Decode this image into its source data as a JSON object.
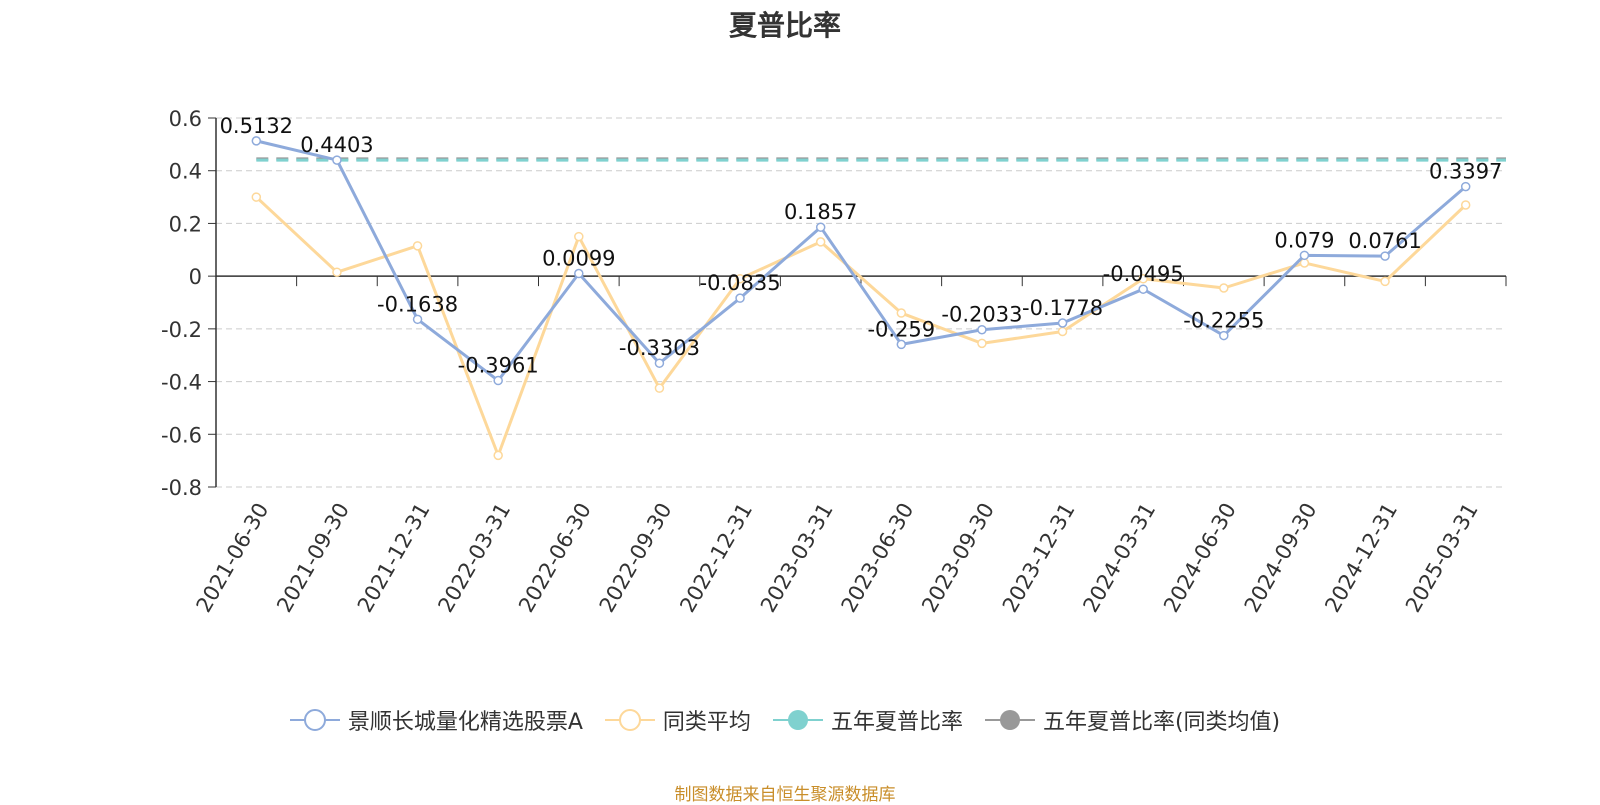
{
  "chart_data": {
    "type": "line",
    "title": "夏普比率",
    "categories": [
      "2021-06-30",
      "2021-09-30",
      "2021-12-31",
      "2022-03-31",
      "2022-06-30",
      "2022-09-30",
      "2022-12-31",
      "2023-03-31",
      "2023-06-30",
      "2023-09-30",
      "2023-12-31",
      "2024-03-31",
      "2024-06-30",
      "2024-09-30",
      "2024-12-31",
      "2025-03-31"
    ],
    "ylim": [
      -0.8,
      0.6
    ],
    "yticks": [
      0.6,
      0.4,
      0.2,
      0,
      -0.2,
      -0.4,
      -0.6,
      -0.8
    ],
    "ytick_labels": [
      "0.6",
      "0.4",
      "0.2",
      "0",
      "-0.2",
      "-0.4",
      "-0.6",
      "-0.8"
    ],
    "grid": true,
    "legend_position": "bottom",
    "series": [
      {
        "name": "景顺长城量化精选股票A",
        "color": "#8eaadb",
        "values": [
          0.5132,
          0.4403,
          -0.1638,
          -0.3961,
          0.0099,
          -0.3303,
          -0.0835,
          0.1857,
          -0.259,
          -0.2033,
          -0.1778,
          -0.0495,
          -0.2255,
          0.079,
          0.0761,
          0.3397
        ],
        "labels": [
          "0.5132",
          "0.4403",
          "-0.1638",
          "-0.3961",
          "0.0099",
          "-0.3303",
          "-0.0835",
          "0.1857",
          "-0.259",
          "-0.2033",
          "-0.1778",
          "-0.0495",
          "-0.2255",
          "0.079",
          "0.0761",
          "0.3397"
        ]
      },
      {
        "name": "同类平均",
        "color": "#fdd89a",
        "values": [
          0.3,
          0.015,
          0.115,
          -0.68,
          0.15,
          -0.425,
          -0.01,
          0.13,
          -0.14,
          -0.255,
          -0.21,
          -0.01,
          -0.045,
          0.05,
          -0.02,
          0.27
        ]
      },
      {
        "name": "五年夏普比率",
        "color": "#7fd1cf",
        "value": 0.44
      },
      {
        "name": "五年夏普比率(同类均值)",
        "color": "#999999",
        "value": 0.445
      }
    ]
  },
  "source_note": "制图数据来自恒生聚源数据库"
}
